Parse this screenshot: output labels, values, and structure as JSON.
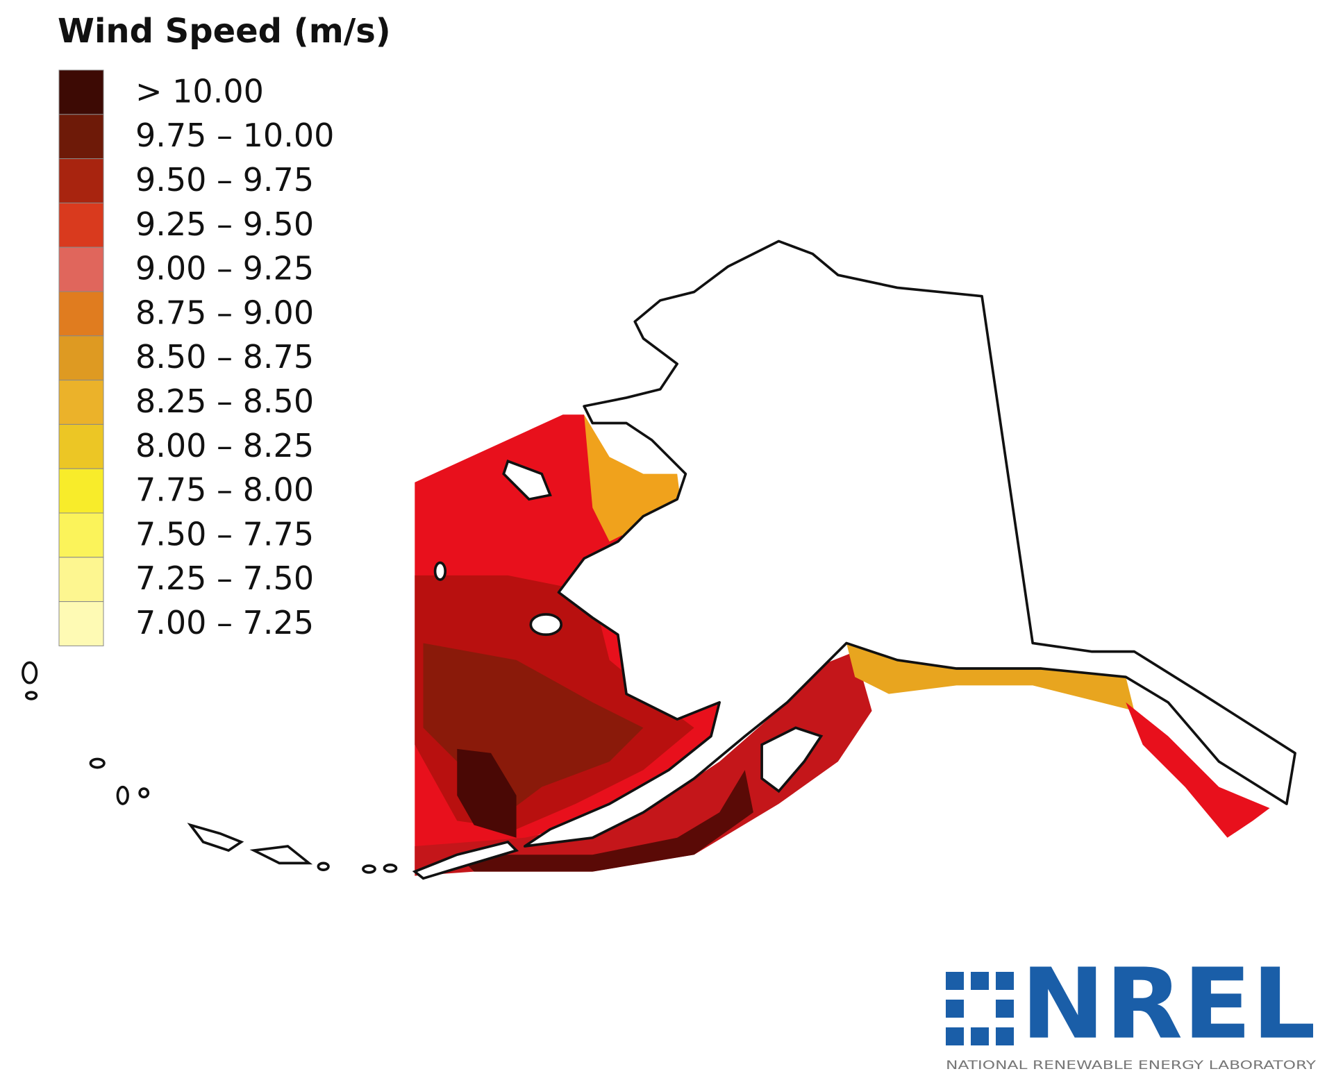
{
  "legend": {
    "title": "Wind Speed (m/s)",
    "items": [
      {
        "label": "> 10.00",
        "color": "#3d0a04"
      },
      {
        "label": "9.75 – 10.00",
        "color": "#6e1a08"
      },
      {
        "label": "9.50 – 9.75",
        "color": "#a8240f"
      },
      {
        "label": "9.25 – 9.50",
        "color": "#d93a1e"
      },
      {
        "label": "9.00 – 9.25",
        "color": "#e0665c"
      },
      {
        "label": "8.75 – 9.00",
        "color": "#e07c1f"
      },
      {
        "label": "8.50 – 8.75",
        "color": "#de9a22"
      },
      {
        "label": "8.25 – 8.50",
        "color": "#ebb22a"
      },
      {
        "label": "8.00 – 8.25",
        "color": "#ecc625"
      },
      {
        "label": "7.75 – 8.00",
        "color": "#f8ec2a"
      },
      {
        "label": "7.50 – 7.75",
        "color": "#fbf35a"
      },
      {
        "label": "7.25 – 7.50",
        "color": "#fdf690"
      },
      {
        "label": "7.00 – 7.25",
        "color": "#fefab4"
      }
    ]
  },
  "logo": {
    "name": "NREL",
    "subtitle": "NATIONAL RENEWABLE ENERGY LABORATORY"
  }
}
